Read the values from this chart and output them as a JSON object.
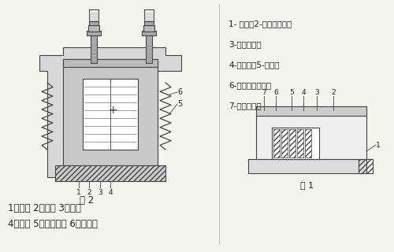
{
  "background_color": "#f5f5f0",
  "title": "",
  "legend_lines": [
    "1- 机座；2-机电磁铁芯；",
    "3-共振弹簧；",
    "4-振动体；5-线圈；",
    "6-硬橡胶冲击块；",
    "7-调整螺栓；"
  ],
  "caption1": "1、铁芯 2、衔铁 3、线圈",
  "caption2": "4、机座 5、共振弹簧 6、振动体",
  "fig1_label": "图 1",
  "fig2_label": "图 2",
  "text_color": "#222222",
  "line_color": "#444444",
  "hatch_color": "#666666"
}
